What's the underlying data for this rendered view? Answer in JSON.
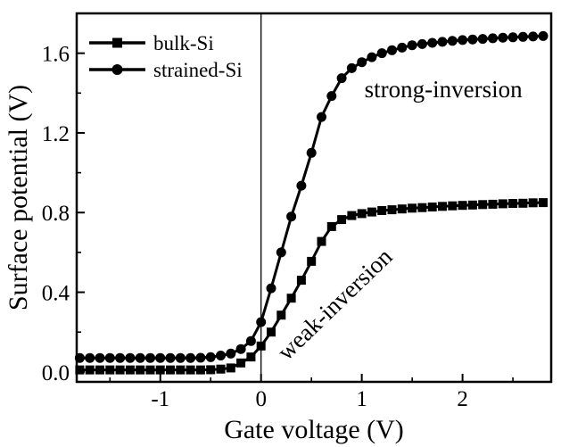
{
  "figure": {
    "background": "#ffffff",
    "ink": "#000000"
  },
  "chart_data": {
    "type": "line",
    "title": "",
    "xlabel": "Gate voltage (V)",
    "ylabel": "Surface potential (V)",
    "xlim": [
      -1.83,
      2.88
    ],
    "ylim": [
      -0.05,
      1.8
    ],
    "grid": false,
    "x_major_ticks": [
      -1,
      0,
      1,
      2
    ],
    "x_tick_labels": [
      "-1",
      "0",
      "1",
      "2"
    ],
    "x_minor_tick_step": 0.5,
    "y_major_ticks": [
      0.0,
      0.4,
      0.8,
      1.2,
      1.6
    ],
    "y_tick_labels": [
      "0.0",
      "0.4",
      "0.8",
      "1.2",
      "1.6"
    ],
    "y_minor_tick_step": 0.2,
    "reference_line_x": 0,
    "legend": {
      "position": "top-left",
      "entries": [
        {
          "label": "bulk-Si",
          "marker": "square"
        },
        {
          "label": "strained-Si",
          "marker": "circle"
        }
      ]
    },
    "annotations": [
      {
        "text": "strong-inversion",
        "x": 1.81,
        "y": 1.42,
        "rotation_deg": 0
      },
      {
        "text": "weak-inversion",
        "x": 0.73,
        "y": 0.34,
        "rotation_deg": -44
      }
    ],
    "x": [
      -1.8,
      -1.7,
      -1.6,
      -1.5,
      -1.4,
      -1.3,
      -1.2,
      -1.1,
      -1.0,
      -0.9,
      -0.8,
      -0.7,
      -0.6,
      -0.5,
      -0.4,
      -0.3,
      -0.2,
      -0.1,
      0.0,
      0.1,
      0.2,
      0.3,
      0.4,
      0.5,
      0.6,
      0.7,
      0.8,
      0.9,
      1.0,
      1.1,
      1.2,
      1.3,
      1.4,
      1.5,
      1.6,
      1.7,
      1.8,
      1.9,
      2.0,
      2.1,
      2.2,
      2.3,
      2.4,
      2.5,
      2.6,
      2.7,
      2.8
    ],
    "series": [
      {
        "name": "bulk-Si",
        "marker": "square",
        "color": "#000000",
        "values": [
          0.01,
          0.01,
          0.01,
          0.01,
          0.01,
          0.01,
          0.01,
          0.01,
          0.01,
          0.01,
          0.01,
          0.01,
          0.01,
          0.011,
          0.014,
          0.02,
          0.045,
          0.075,
          0.13,
          0.2,
          0.285,
          0.37,
          0.46,
          0.555,
          0.655,
          0.73,
          0.765,
          0.785,
          0.795,
          0.803,
          0.81,
          0.814,
          0.818,
          0.822,
          0.825,
          0.828,
          0.831,
          0.834,
          0.836,
          0.838,
          0.84,
          0.842,
          0.844,
          0.846,
          0.847,
          0.849,
          0.85
        ]
      },
      {
        "name": "strained-Si",
        "marker": "circle",
        "color": "#000000",
        "values": [
          0.07,
          0.07,
          0.07,
          0.07,
          0.07,
          0.07,
          0.07,
          0.07,
          0.07,
          0.07,
          0.07,
          0.07,
          0.071,
          0.074,
          0.082,
          0.092,
          0.115,
          0.155,
          0.25,
          0.42,
          0.6,
          0.78,
          0.935,
          1.1,
          1.28,
          1.385,
          1.475,
          1.525,
          1.555,
          1.58,
          1.6,
          1.615,
          1.628,
          1.64,
          1.646,
          1.652,
          1.657,
          1.662,
          1.666,
          1.669,
          1.672,
          1.675,
          1.678,
          1.68,
          1.682,
          1.684,
          1.686
        ]
      }
    ]
  }
}
